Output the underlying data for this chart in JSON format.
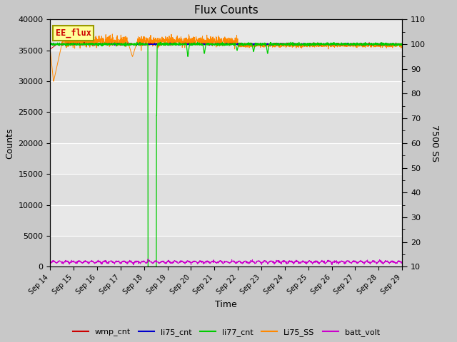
{
  "title": "Flux Counts",
  "xlabel": "Time",
  "ylabel_left": "Counts",
  "ylabel_right": "7500 SS",
  "background_color": "#c8c8c8",
  "plot_bg_color": "#e8e8e8",
  "ylim_left": [
    0,
    40000
  ],
  "ylim_right": [
    10,
    110
  ],
  "yticks_left": [
    0,
    5000,
    10000,
    15000,
    20000,
    25000,
    30000,
    35000,
    40000
  ],
  "yticks_right": [
    10,
    20,
    30,
    40,
    50,
    60,
    70,
    80,
    90,
    100,
    110
  ],
  "xtick_labels": [
    "Sep 14",
    "Sep 15",
    "Sep 16",
    "Sep 17",
    "Sep 18",
    "Sep 19",
    "Sep 20",
    "Sep 21",
    "Sep 22",
    "Sep 23",
    "Sep 24",
    "Sep 25",
    "Sep 26",
    "Sep 27",
    "Sep 28",
    "Sep 29"
  ],
  "legend_labels": [
    "wmp_cnt",
    "li75_cnt",
    "li77_cnt",
    "Li75_SS",
    "batt_volt"
  ],
  "legend_colors": [
    "#cc0000",
    "#0000cc",
    "#00cc00",
    "#ff8800",
    "#cc00cc"
  ],
  "annotation_text": "EE_flux",
  "annotation_color": "#cc0000",
  "annotation_bg": "#ffff99",
  "annotation_border": "#999900"
}
